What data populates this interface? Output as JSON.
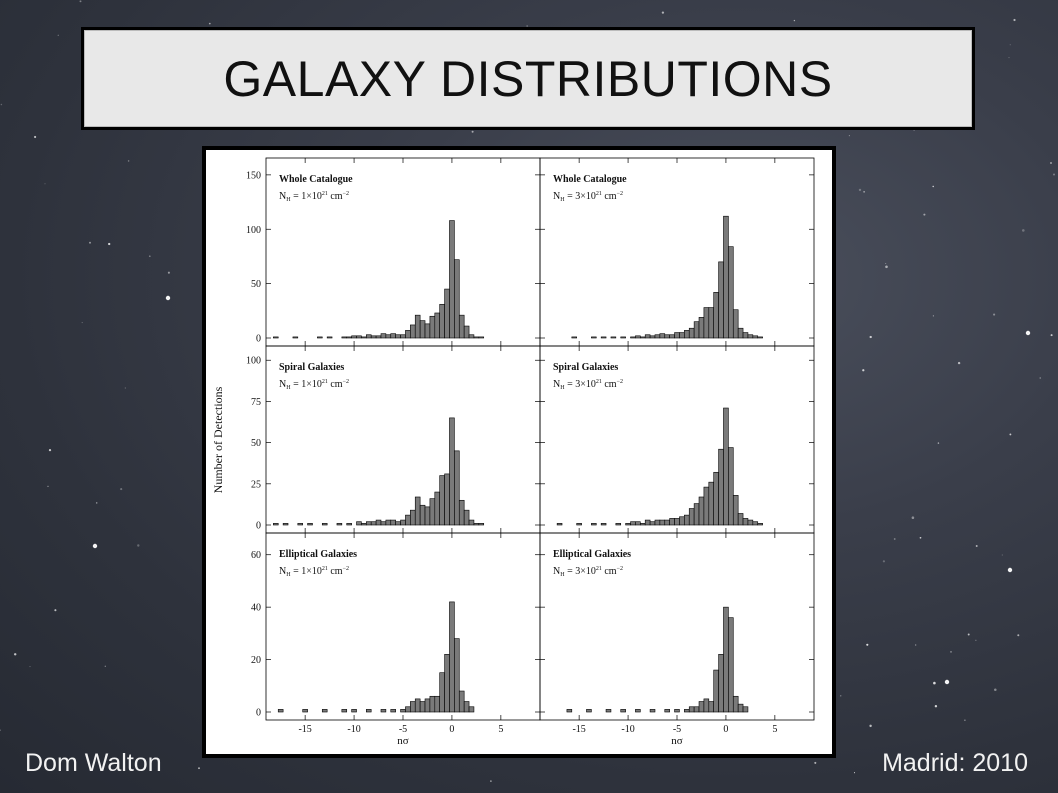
{
  "slide": {
    "title": "GALAXY DISTRIBUTIONS",
    "footer_left": "Dom Walton",
    "footer_right": "Madrid: 2010"
  },
  "colors": {
    "bar_fill": "#7a7a7a",
    "bar_stroke": "#000000",
    "frame": "#000000"
  },
  "chart_data": {
    "type": "bar",
    "xlabel": "nσ",
    "ylabel": "Number of Detections",
    "x_ticks": [
      -15,
      -10,
      -5,
      0,
      5
    ],
    "xlim": [
      -19,
      9
    ],
    "bin_width": 0.5,
    "rows": [
      {
        "ylim": [
          0,
          160
        ],
        "yticks": [
          0,
          50,
          100,
          150
        ],
        "panels": [
          {
            "title": "Whole Catalogue",
            "nh_label": "N",
            "nh_sub": "H",
            "nh_val": " = 1×10",
            "nh_exp": "21",
            "nh_unit": " cm",
            "nh_unit_exp": "−2",
            "bins": [
              {
                "x": -18.0,
                "v": 1
              },
              {
                "x": -16.0,
                "v": 1
              },
              {
                "x": -13.5,
                "v": 1
              },
              {
                "x": -12.5,
                "v": 1
              },
              {
                "x": -11.0,
                "v": 1
              },
              {
                "x": -10.5,
                "v": 1
              },
              {
                "x": -10.0,
                "v": 2
              },
              {
                "x": -9.5,
                "v": 2
              },
              {
                "x": -9.0,
                "v": 1
              },
              {
                "x": -8.5,
                "v": 3
              },
              {
                "x": -8.0,
                "v": 2
              },
              {
                "x": -7.5,
                "v": 2
              },
              {
                "x": -7.0,
                "v": 4
              },
              {
                "x": -6.5,
                "v": 3
              },
              {
                "x": -6.0,
                "v": 4
              },
              {
                "x": -5.5,
                "v": 3
              },
              {
                "x": -5.0,
                "v": 3
              },
              {
                "x": -4.5,
                "v": 7
              },
              {
                "x": -4.0,
                "v": 12
              },
              {
                "x": -3.5,
                "v": 21
              },
              {
                "x": -3.0,
                "v": 16
              },
              {
                "x": -2.5,
                "v": 13
              },
              {
                "x": -2.0,
                "v": 20
              },
              {
                "x": -1.5,
                "v": 23
              },
              {
                "x": -1.0,
                "v": 31
              },
              {
                "x": -0.5,
                "v": 45
              },
              {
                "x": 0.0,
                "v": 108
              },
              {
                "x": 0.5,
                "v": 72
              },
              {
                "x": 1.0,
                "v": 21
              },
              {
                "x": 1.5,
                "v": 11
              },
              {
                "x": 2.0,
                "v": 3
              },
              {
                "x": 2.5,
                "v": 1
              },
              {
                "x": 3.0,
                "v": 1
              }
            ]
          },
          {
            "title": "Whole Catalogue",
            "nh_label": "N",
            "nh_sub": "H",
            "nh_val": " = 3×10",
            "nh_exp": "21",
            "nh_unit": " cm",
            "nh_unit_exp": "−2",
            "bins": [
              {
                "x": -15.5,
                "v": 1
              },
              {
                "x": -13.5,
                "v": 1
              },
              {
                "x": -12.5,
                "v": 1
              },
              {
                "x": -11.5,
                "v": 1
              },
              {
                "x": -10.5,
                "v": 1
              },
              {
                "x": -9.5,
                "v": 1
              },
              {
                "x": -9.0,
                "v": 2
              },
              {
                "x": -8.5,
                "v": 1
              },
              {
                "x": -8.0,
                "v": 3
              },
              {
                "x": -7.5,
                "v": 2
              },
              {
                "x": -7.0,
                "v": 3
              },
              {
                "x": -6.5,
                "v": 4
              },
              {
                "x": -6.0,
                "v": 3
              },
              {
                "x": -5.5,
                "v": 3
              },
              {
                "x": -5.0,
                "v": 5
              },
              {
                "x": -4.5,
                "v": 5
              },
              {
                "x": -4.0,
                "v": 7
              },
              {
                "x": -3.5,
                "v": 9
              },
              {
                "x": -3.0,
                "v": 15
              },
              {
                "x": -2.5,
                "v": 19
              },
              {
                "x": -2.0,
                "v": 28
              },
              {
                "x": -1.5,
                "v": 28
              },
              {
                "x": -1.0,
                "v": 42
              },
              {
                "x": -0.5,
                "v": 70
              },
              {
                "x": 0.0,
                "v": 112
              },
              {
                "x": 0.5,
                "v": 84
              },
              {
                "x": 1.0,
                "v": 26
              },
              {
                "x": 1.5,
                "v": 9
              },
              {
                "x": 2.0,
                "v": 5
              },
              {
                "x": 2.5,
                "v": 3
              },
              {
                "x": 3.0,
                "v": 2
              },
              {
                "x": 3.5,
                "v": 1
              }
            ]
          }
        ]
      },
      {
        "ylim": [
          0,
          105
        ],
        "yticks": [
          0,
          25,
          50,
          75,
          100
        ],
        "panels": [
          {
            "title": "Spiral Galaxies",
            "nh_label": "N",
            "nh_sub": "H",
            "nh_val": " = 1×10",
            "nh_exp": "21",
            "nh_unit": " cm",
            "nh_unit_exp": "−2",
            "bins": [
              {
                "x": -18.0,
                "v": 1
              },
              {
                "x": -17.0,
                "v": 1
              },
              {
                "x": -15.5,
                "v": 1
              },
              {
                "x": -14.5,
                "v": 1
              },
              {
                "x": -13.0,
                "v": 1
              },
              {
                "x": -11.5,
                "v": 1
              },
              {
                "x": -10.5,
                "v": 1
              },
              {
                "x": -9.5,
                "v": 2
              },
              {
                "x": -9.0,
                "v": 1
              },
              {
                "x": -8.5,
                "v": 2
              },
              {
                "x": -8.0,
                "v": 2
              },
              {
                "x": -7.5,
                "v": 3
              },
              {
                "x": -7.0,
                "v": 2
              },
              {
                "x": -6.5,
                "v": 3
              },
              {
                "x": -6.0,
                "v": 3
              },
              {
                "x": -5.5,
                "v": 2
              },
              {
                "x": -5.0,
                "v": 3
              },
              {
                "x": -4.5,
                "v": 6
              },
              {
                "x": -4.0,
                "v": 9
              },
              {
                "x": -3.5,
                "v": 17
              },
              {
                "x": -3.0,
                "v": 12
              },
              {
                "x": -2.5,
                "v": 11
              },
              {
                "x": -2.0,
                "v": 16
              },
              {
                "x": -1.5,
                "v": 20
              },
              {
                "x": -1.0,
                "v": 30
              },
              {
                "x": -0.5,
                "v": 31
              },
              {
                "x": 0.0,
                "v": 65
              },
              {
                "x": 0.5,
                "v": 45
              },
              {
                "x": 1.0,
                "v": 15
              },
              {
                "x": 1.5,
                "v": 9
              },
              {
                "x": 2.0,
                "v": 3
              },
              {
                "x": 2.5,
                "v": 1
              },
              {
                "x": 3.0,
                "v": 1
              }
            ]
          },
          {
            "title": "Spiral Galaxies",
            "nh_label": "N",
            "nh_sub": "H",
            "nh_val": " = 3×10",
            "nh_exp": "21",
            "nh_unit": " cm",
            "nh_unit_exp": "−2",
            "bins": [
              {
                "x": -17.0,
                "v": 1
              },
              {
                "x": -15.0,
                "v": 1
              },
              {
                "x": -13.5,
                "v": 1
              },
              {
                "x": -12.5,
                "v": 1
              },
              {
                "x": -11.0,
                "v": 1
              },
              {
                "x": -10.0,
                "v": 1
              },
              {
                "x": -9.5,
                "v": 2
              },
              {
                "x": -9.0,
                "v": 2
              },
              {
                "x": -8.5,
                "v": 1
              },
              {
                "x": -8.0,
                "v": 3
              },
              {
                "x": -7.5,
                "v": 2
              },
              {
                "x": -7.0,
                "v": 3
              },
              {
                "x": -6.5,
                "v": 3
              },
              {
                "x": -6.0,
                "v": 3
              },
              {
                "x": -5.5,
                "v": 4
              },
              {
                "x": -5.0,
                "v": 4
              },
              {
                "x": -4.5,
                "v": 5
              },
              {
                "x": -4.0,
                "v": 6
              },
              {
                "x": -3.5,
                "v": 10
              },
              {
                "x": -3.0,
                "v": 13
              },
              {
                "x": -2.5,
                "v": 17
              },
              {
                "x": -2.0,
                "v": 23
              },
              {
                "x": -1.5,
                "v": 26
              },
              {
                "x": -1.0,
                "v": 32
              },
              {
                "x": -0.5,
                "v": 46
              },
              {
                "x": 0.0,
                "v": 71
              },
              {
                "x": 0.5,
                "v": 47
              },
              {
                "x": 1.0,
                "v": 18
              },
              {
                "x": 1.5,
                "v": 7
              },
              {
                "x": 2.0,
                "v": 4
              },
              {
                "x": 2.5,
                "v": 3
              },
              {
                "x": 3.0,
                "v": 2
              },
              {
                "x": 3.5,
                "v": 1
              }
            ]
          }
        ]
      },
      {
        "ylim": [
          0,
          66
        ],
        "yticks": [
          0,
          20,
          40,
          60
        ],
        "panels": [
          {
            "title": "Elliptical Galaxies",
            "nh_label": "N",
            "nh_sub": "H",
            "nh_val": " = 1×10",
            "nh_exp": "21",
            "nh_unit": " cm",
            "nh_unit_exp": "−2",
            "bins": [
              {
                "x": -17.5,
                "v": 1
              },
              {
                "x": -15.0,
                "v": 1
              },
              {
                "x": -13.0,
                "v": 1
              },
              {
                "x": -11.0,
                "v": 1
              },
              {
                "x": -10.0,
                "v": 1
              },
              {
                "x": -8.5,
                "v": 1
              },
              {
                "x": -7.0,
                "v": 1
              },
              {
                "x": -6.0,
                "v": 1
              },
              {
                "x": -5.0,
                "v": 1
              },
              {
                "x": -4.5,
                "v": 2
              },
              {
                "x": -4.0,
                "v": 4
              },
              {
                "x": -3.5,
                "v": 5
              },
              {
                "x": -3.0,
                "v": 4
              },
              {
                "x": -2.5,
                "v": 5
              },
              {
                "x": -2.0,
                "v": 6
              },
              {
                "x": -1.5,
                "v": 6
              },
              {
                "x": -1.0,
                "v": 15
              },
              {
                "x": -0.5,
                "v": 22
              },
              {
                "x": 0.0,
                "v": 42
              },
              {
                "x": 0.5,
                "v": 28
              },
              {
                "x": 1.0,
                "v": 8
              },
              {
                "x": 1.5,
                "v": 4
              },
              {
                "x": 2.0,
                "v": 2
              }
            ]
          },
          {
            "title": "Elliptical Galaxies",
            "nh_label": "N",
            "nh_sub": "H",
            "nh_val": " = 3×10",
            "nh_exp": "21",
            "nh_unit": " cm",
            "nh_unit_exp": "−2",
            "bins": [
              {
                "x": -16.0,
                "v": 1
              },
              {
                "x": -14.0,
                "v": 1
              },
              {
                "x": -12.0,
                "v": 1
              },
              {
                "x": -10.5,
                "v": 1
              },
              {
                "x": -9.0,
                "v": 1
              },
              {
                "x": -7.5,
                "v": 1
              },
              {
                "x": -6.0,
                "v": 1
              },
              {
                "x": -5.0,
                "v": 1
              },
              {
                "x": -4.0,
                "v": 1
              },
              {
                "x": -3.5,
                "v": 2
              },
              {
                "x": -3.0,
                "v": 2
              },
              {
                "x": -2.5,
                "v": 4
              },
              {
                "x": -2.0,
                "v": 5
              },
              {
                "x": -1.5,
                "v": 4
              },
              {
                "x": -1.0,
                "v": 16
              },
              {
                "x": -0.5,
                "v": 22
              },
              {
                "x": 0.0,
                "v": 40
              },
              {
                "x": 0.5,
                "v": 36
              },
              {
                "x": 1.0,
                "v": 6
              },
              {
                "x": 1.5,
                "v": 3
              },
              {
                "x": 2.0,
                "v": 2
              }
            ]
          }
        ]
      }
    ]
  }
}
